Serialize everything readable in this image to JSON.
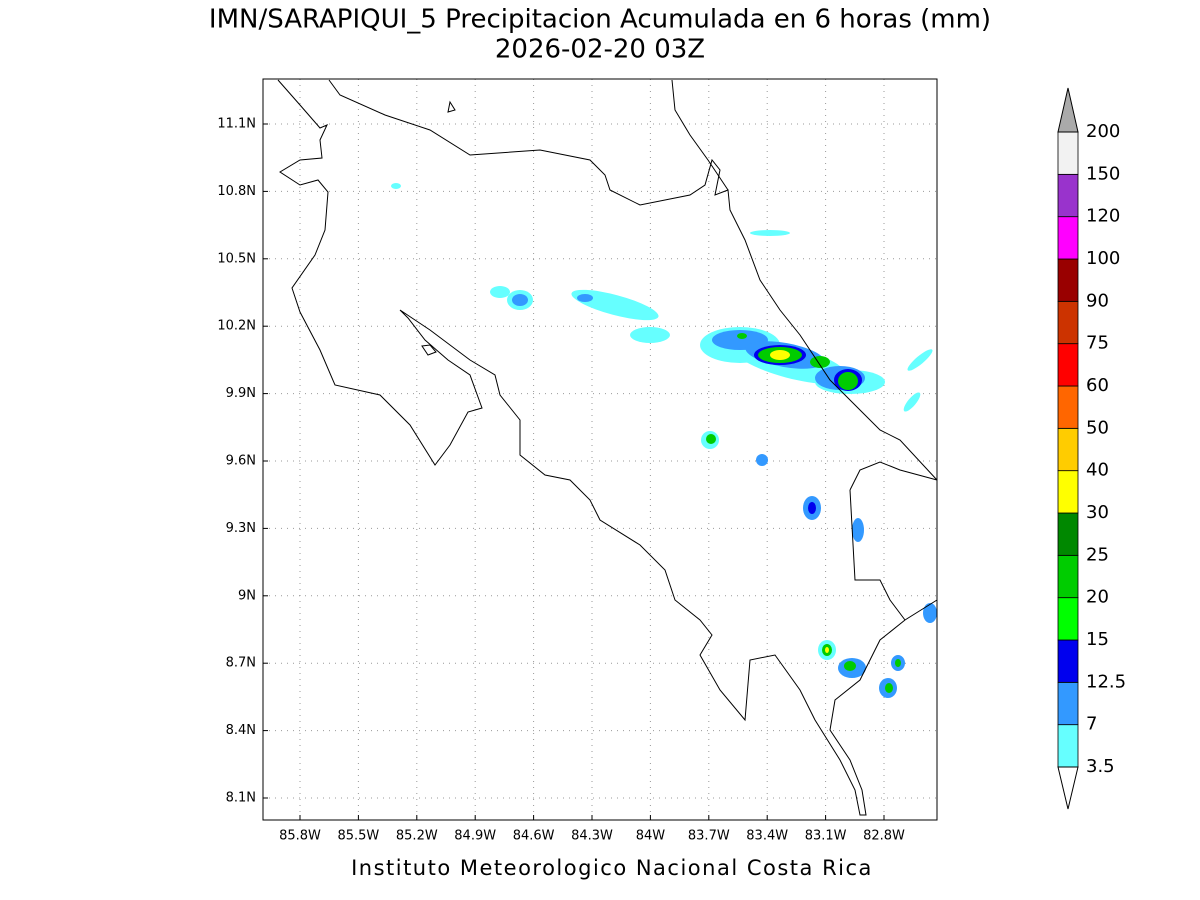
{
  "title": "IMN/SARAPIQUI_5 Precipitacion Acumulada en 6 horas (mm)",
  "subtitle": "2026-02-20 03Z",
  "footer": "Instituto Meteorologico Nacional Costa Rica",
  "lon_labels": [
    "85.8W",
    "85.5W",
    "85.2W",
    "84.9W",
    "84.6W",
    "84.3W",
    "84W",
    "83.7W",
    "83.4W",
    "83.1W",
    "82.8W"
  ],
  "lat_labels": [
    "11.1N",
    "10.8N",
    "10.5N",
    "10.2N",
    "9.9N",
    "9.6N",
    "9.3N",
    "9N",
    "8.7N",
    "8.4N",
    "8.1N"
  ],
  "colorbar": {
    "levels": [
      3.5,
      7,
      12.5,
      15,
      20,
      25,
      30,
      40,
      50,
      60,
      75,
      90,
      100,
      120,
      150,
      200
    ],
    "colors": [
      "#ffffff",
      "#66ffff",
      "#3399ff",
      "#0000ee",
      "#00ff00",
      "#00cc00",
      "#008800",
      "#ffff00",
      "#ffcc00",
      "#ff6600",
      "#ff0000",
      "#cc3300",
      "#990000",
      "#ff00ff",
      "#9933cc",
      "#f2f2f2",
      "#aaaaaa"
    ]
  }
}
